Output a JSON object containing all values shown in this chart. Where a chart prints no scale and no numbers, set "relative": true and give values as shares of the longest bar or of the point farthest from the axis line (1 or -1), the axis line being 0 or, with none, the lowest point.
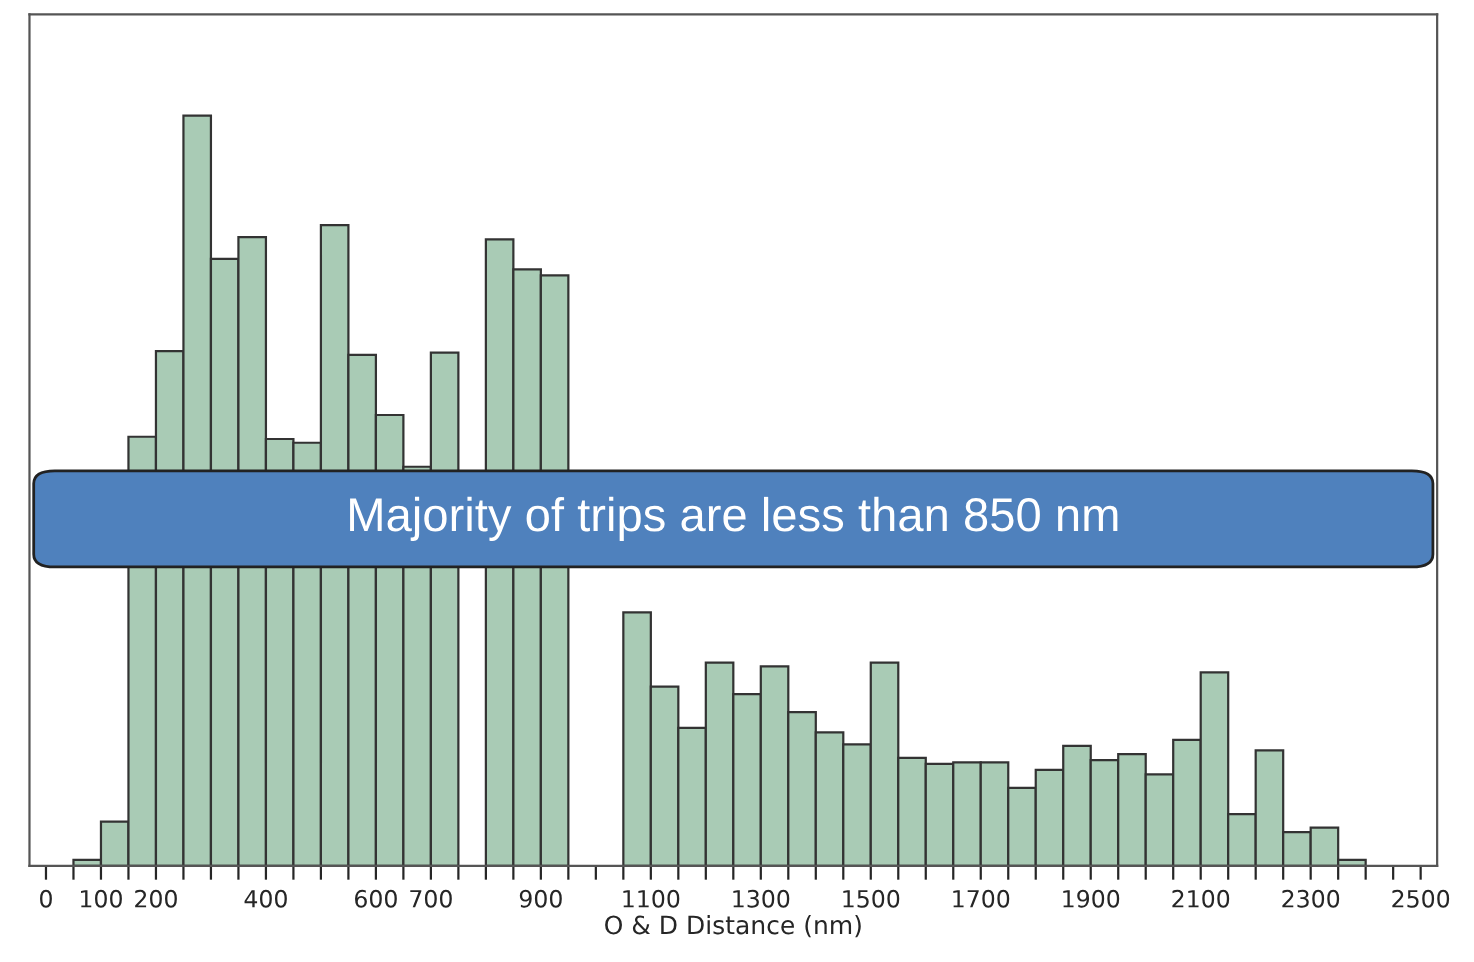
{
  "chart_data": {
    "type": "bar",
    "relative": true,
    "xlabel": "O & D Distance (nm)",
    "x": [
      75,
      125,
      175,
      225,
      275,
      325,
      375,
      425,
      475,
      525,
      575,
      625,
      675,
      725,
      775,
      825,
      875,
      925,
      975,
      1025,
      1075,
      1125,
      1175,
      1225,
      1275,
      1325,
      1375,
      1425,
      1475,
      1525,
      1575,
      1625,
      1675,
      1725,
      1775,
      1825,
      1875,
      1925,
      1975,
      2025,
      2075,
      2125,
      2175,
      2225,
      2275,
      2325,
      2375
    ],
    "series": [
      {
        "color": "#a9cbb5",
        "values": [
          0.008,
          0.059,
          0.572,
          0.686,
          1,
          0.809,
          0.838,
          0.569,
          0.564,
          0.854,
          0.681,
          0.601,
          0.532,
          0.684,
          null,
          0.835,
          0.795,
          0.787,
          null,
          null,
          0.338,
          0.239,
          0.184,
          0.271,
          0.229,
          0.266,
          0.205,
          0.178,
          0.162,
          0.271,
          0.144,
          0.136,
          0.138,
          0.138,
          0.104,
          0.128,
          0.16,
          0.141,
          0.149,
          0.122,
          0.168,
          0.258,
          0.069,
          0.154,
          0.045,
          0.051,
          0.008
        ]
      }
    ],
    "xlim": [
      -30,
      2530
    ],
    "xticks": [
      0,
      {
        "value": 50,
        "label": null
      },
      100,
      {
        "value": 150,
        "label": null
      },
      200,
      {
        "value": 250,
        "label": null
      },
      {
        "value": 300,
        "label": null
      },
      {
        "value": 350,
        "label": null
      },
      400,
      {
        "value": 450,
        "label": null
      },
      {
        "value": 500,
        "label": null
      },
      {
        "value": 550,
        "label": null
      },
      600,
      {
        "value": 650,
        "label": null
      },
      700,
      {
        "value": 750,
        "label": null
      },
      {
        "value": 800,
        "label": null
      },
      {
        "value": 850,
        "label": null
      },
      900,
      {
        "value": 950,
        "label": null
      },
      {
        "value": 1000,
        "label": null
      },
      {
        "value": 1050,
        "label": null
      },
      1100,
      {
        "value": 1150,
        "label": null
      },
      {
        "value": 1200,
        "label": null
      },
      {
        "value": 1250,
        "label": null
      },
      1300,
      {
        "value": 1350,
        "label": null
      },
      {
        "value": 1400,
        "label": null
      },
      {
        "value": 1450,
        "label": null
      },
      1500,
      {
        "value": 1550,
        "label": null
      },
      {
        "value": 1600,
        "label": null
      },
      {
        "value": 1650,
        "label": null
      },
      1700,
      {
        "value": 1750,
        "label": null
      },
      {
        "value": 1800,
        "label": null
      },
      {
        "value": 1850,
        "label": null
      },
      1900,
      {
        "value": 1950,
        "label": null
      },
      {
        "value": 2000,
        "label": null
      },
      {
        "value": 2050,
        "label": null
      },
      2100,
      {
        "value": 2150,
        "label": null
      },
      {
        "value": 2200,
        "label": null
      },
      {
        "value": 2250,
        "label": null
      },
      2300,
      {
        "value": 2350,
        "label": null
      },
      {
        "value": 2400,
        "label": null
      },
      {
        "value": 2450,
        "label": null
      },
      2500
    ],
    "tick_labels": "x",
    "grid": false,
    "annotations": [
      "Majority of trips are less than 850 nm"
    ]
  }
}
